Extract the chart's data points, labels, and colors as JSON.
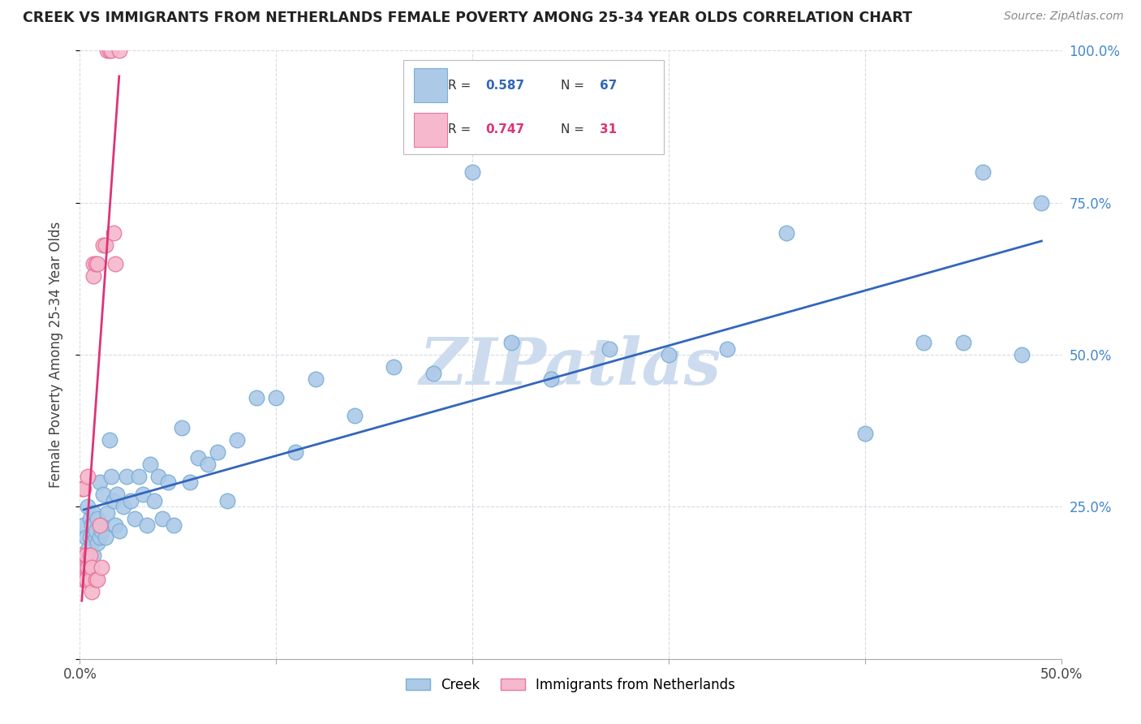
{
  "title": "CREEK VS IMMIGRANTS FROM NETHERLANDS FEMALE POVERTY AMONG 25-34 YEAR OLDS CORRELATION CHART",
  "source": "Source: ZipAtlas.com",
  "ylabel": "Female Poverty Among 25-34 Year Olds",
  "xlim": [
    0.0,
    0.5
  ],
  "ylim": [
    0.0,
    1.0
  ],
  "xticks": [
    0.0,
    0.1,
    0.2,
    0.3,
    0.4,
    0.5
  ],
  "xticklabels": [
    "0.0%",
    "",
    "",
    "",
    "",
    "50.0%"
  ],
  "yticks": [
    0.0,
    0.25,
    0.5,
    0.75,
    1.0
  ],
  "yticklabels_right": [
    "",
    "25.0%",
    "50.0%",
    "75.0%",
    "100.0%"
  ],
  "creek_color": "#adc9e8",
  "creek_edge_color": "#7bafd4",
  "netherlands_color": "#f5b8cc",
  "netherlands_edge_color": "#e8789a",
  "creek_line_color": "#3366bb",
  "netherlands_line_color": "#dd3377",
  "creek_R": 0.587,
  "creek_N": 67,
  "netherlands_R": 0.747,
  "netherlands_N": 31,
  "watermark": "ZIPatlas",
  "watermark_color": "#ccdcee",
  "creek_x": [
    0.002,
    0.003,
    0.004,
    0.004,
    0.005,
    0.005,
    0.006,
    0.006,
    0.007,
    0.007,
    0.008,
    0.008,
    0.009,
    0.009,
    0.01,
    0.01,
    0.011,
    0.011,
    0.012,
    0.013,
    0.014,
    0.015,
    0.016,
    0.017,
    0.018,
    0.019,
    0.02,
    0.022,
    0.024,
    0.026,
    0.028,
    0.03,
    0.032,
    0.034,
    0.036,
    0.038,
    0.04,
    0.042,
    0.045,
    0.048,
    0.052,
    0.056,
    0.06,
    0.065,
    0.07,
    0.075,
    0.08,
    0.09,
    0.1,
    0.11,
    0.12,
    0.14,
    0.16,
    0.18,
    0.2,
    0.22,
    0.24,
    0.27,
    0.3,
    0.33,
    0.36,
    0.4,
    0.43,
    0.45,
    0.46,
    0.48,
    0.49
  ],
  "creek_y": [
    0.22,
    0.2,
    0.18,
    0.25,
    0.2,
    0.23,
    0.19,
    0.22,
    0.17,
    0.24,
    0.2,
    0.21,
    0.19,
    0.23,
    0.2,
    0.29,
    0.22,
    0.21,
    0.27,
    0.2,
    0.24,
    0.36,
    0.3,
    0.26,
    0.22,
    0.27,
    0.21,
    0.25,
    0.3,
    0.26,
    0.23,
    0.3,
    0.27,
    0.22,
    0.32,
    0.26,
    0.3,
    0.23,
    0.29,
    0.22,
    0.38,
    0.29,
    0.33,
    0.32,
    0.34,
    0.26,
    0.36,
    0.43,
    0.43,
    0.34,
    0.46,
    0.4,
    0.48,
    0.47,
    0.8,
    0.52,
    0.46,
    0.51,
    0.5,
    0.51,
    0.7,
    0.37,
    0.52,
    0.52,
    0.8,
    0.5,
    0.75
  ],
  "netherlands_x": [
    0.001,
    0.001,
    0.001,
    0.002,
    0.002,
    0.002,
    0.003,
    0.003,
    0.003,
    0.004,
    0.004,
    0.005,
    0.005,
    0.006,
    0.006,
    0.007,
    0.007,
    0.008,
    0.008,
    0.009,
    0.009,
    0.01,
    0.011,
    0.012,
    0.013,
    0.014,
    0.015,
    0.016,
    0.017,
    0.018,
    0.02
  ],
  "netherlands_y": [
    0.28,
    0.17,
    0.15,
    0.28,
    0.15,
    0.13,
    0.17,
    0.15,
    0.13,
    0.3,
    0.15,
    0.17,
    0.13,
    0.15,
    0.11,
    0.65,
    0.63,
    0.65,
    0.13,
    0.65,
    0.13,
    0.22,
    0.15,
    0.68,
    0.68,
    1.0,
    1.0,
    1.0,
    0.7,
    0.65,
    1.0
  ]
}
